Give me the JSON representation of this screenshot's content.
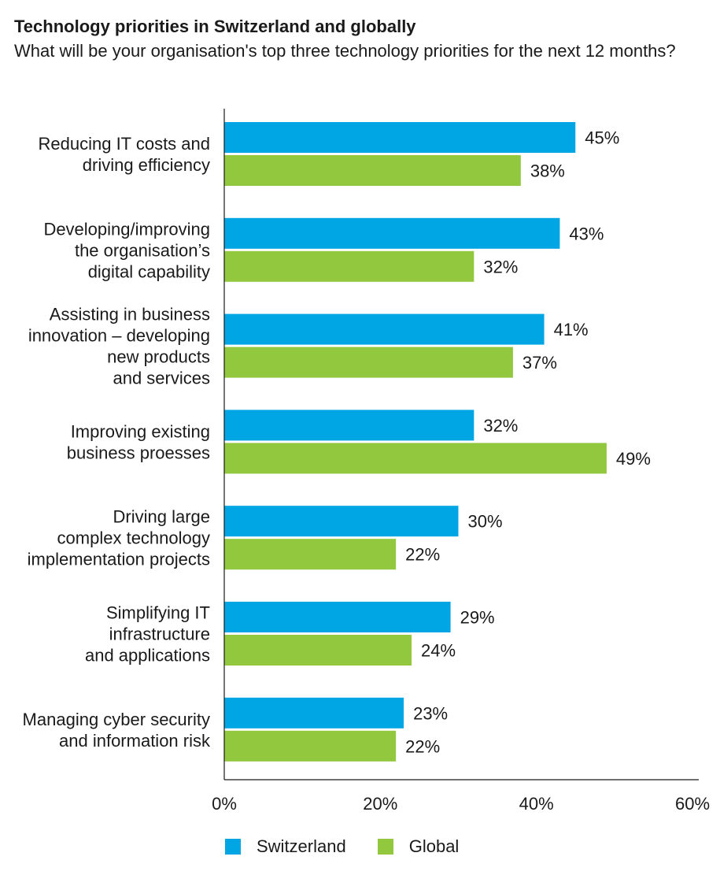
{
  "title": "Technology priorities in Switzerland and globally",
  "subtitle": "What will be your organisation's top three technology priorities for the next 12 months?",
  "colors": {
    "switzerland": "#00a5e3",
    "global": "#92c83e",
    "axis": "#1a1a1a"
  },
  "legend": {
    "switzerland": "Switzerland",
    "global": "Global"
  },
  "chart_data": {
    "type": "bar",
    "orientation": "horizontal",
    "title": "Technology priorities in Switzerland and globally",
    "subtitle": "What will be your organisation's top three technology priorities for the next 12 months?",
    "categories": [
      [
        "Reducing IT costs and",
        "driving efficiency"
      ],
      [
        "Developing/improving",
        "the organisation’s",
        "digital capability"
      ],
      [
        "Assisting in business",
        "innovation – developing",
        "new products",
        "and services"
      ],
      [
        "Improving existing",
        "business proesses"
      ],
      [
        "Driving large",
        "complex technology",
        "implementation projects"
      ],
      [
        "Simplifying IT",
        "infrastructure",
        "and applications"
      ],
      [
        "Managing cyber security",
        "and information risk"
      ]
    ],
    "series": [
      {
        "name": "Switzerland",
        "values": [
          45,
          43,
          41,
          32,
          30,
          29,
          23
        ]
      },
      {
        "name": "Global",
        "values": [
          38,
          32,
          37,
          49,
          22,
          24,
          22
        ]
      }
    ],
    "value_suffix": "%",
    "xlim": [
      0,
      60
    ],
    "xticks": [
      "0%",
      "20%",
      "40%",
      "60%"
    ],
    "grid": false,
    "legend_position": "bottom"
  }
}
